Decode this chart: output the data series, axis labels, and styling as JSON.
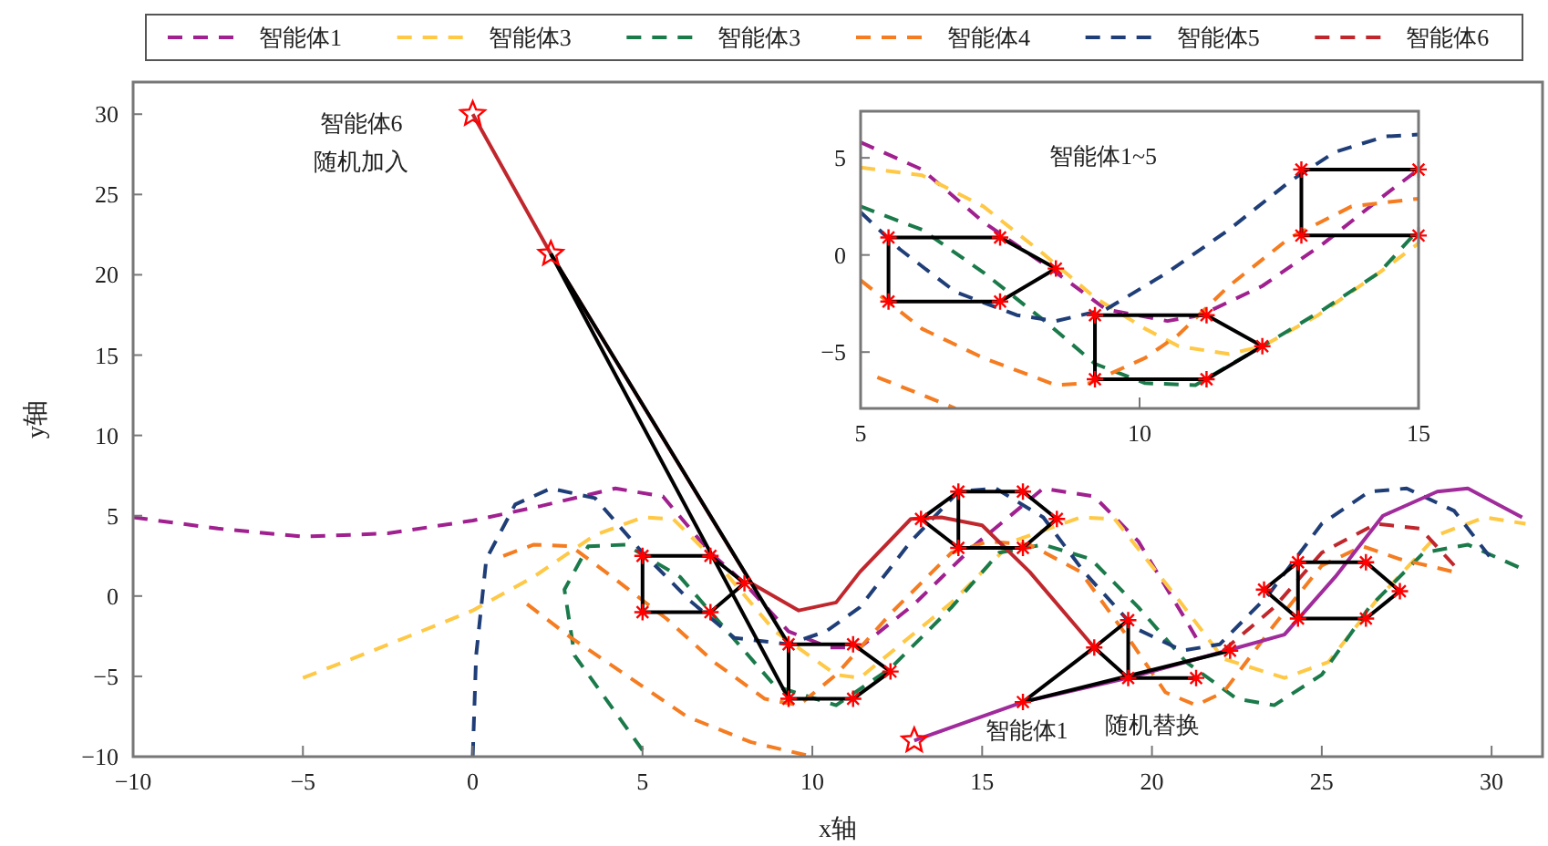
{
  "chart_data": [
    {
      "type": "line",
      "xlabel": "x轴",
      "ylabel": "y轴",
      "legend": "top",
      "grid": false,
      "xlim": [
        -10,
        31.5
      ],
      "ylim": [
        -10,
        32
      ],
      "xticks": [
        -10,
        -5,
        0,
        5,
        10,
        15,
        20,
        25,
        30
      ],
      "yticks": [
        -10,
        -5,
        0,
        5,
        10,
        15,
        20,
        25,
        30
      ],
      "annotations": [
        "智能体6",
        "随机加入",
        "智能体1",
        "随机替换"
      ],
      "series": [
        {
          "name": "智能体1",
          "color": "#a0208f",
          "line_style": "dashed",
          "x": [
            -10,
            -7.5,
            -5,
            -2.5,
            0,
            2,
            4.2,
            5.6,
            7,
            8,
            9.3,
            10.5,
            11.4,
            13,
            14.8,
            16.8,
            18.3,
            19.6,
            21,
            21.3
          ],
          "values": [
            4.9,
            4.2,
            3.7,
            3.9,
            4.7,
            5.6,
            6.7,
            6.2,
            2.7,
            0.8,
            -2.2,
            -3.2,
            -3.2,
            -0.5,
            3.2,
            6.7,
            6.2,
            3.4,
            -1.5,
            -2.6
          ]
        },
        {
          "name": "智能体3",
          "color": "#ffc845",
          "line_style": "dashed",
          "x": [
            -5,
            -2.7,
            0,
            1.8,
            3.6,
            5,
            5.9,
            7.1,
            8.9,
            10.7,
            11.4,
            14.1,
            15.9,
            17.9,
            18.9,
            20.7,
            22.1,
            23.9,
            25.2,
            26.6,
            28.4,
            29.8,
            31
          ],
          "values": [
            -5.1,
            -3.2,
            -0.9,
            1.2,
            3.8,
            4.9,
            4.8,
            2.3,
            -2.2,
            -4.9,
            -5.1,
            -0.4,
            3.4,
            4.9,
            4.8,
            0,
            -3.9,
            -5.1,
            -4.1,
            -0.3,
            3.8,
            4.9,
            4.5
          ]
        },
        {
          "name": "智能体3",
          "color": "#1a7a4a",
          "line_style": "dashed",
          "x": [
            5,
            3,
            2.7,
            3.4,
            4.5,
            6.1,
            7.5,
            8.9,
            10.7,
            12.3,
            14.1,
            15.5,
            16.8,
            18.2,
            19.6,
            21,
            22.5,
            23.6,
            25,
            26.4,
            28,
            29.3,
            30.9
          ],
          "values": [
            -9.6,
            -3.7,
            0.4,
            3.1,
            3.2,
            1.2,
            -2.2,
            -5.6,
            -6.8,
            -4.5,
            -0.7,
            2.7,
            3.2,
            2.3,
            -0.7,
            -4.1,
            -6.4,
            -6.8,
            -4.9,
            -0.7,
            2.7,
            3.2,
            1.7
          ]
        },
        {
          "name": "智能体4",
          "color": "#f57c20",
          "line_style": "dashed",
          "x": [
            0.9,
            1.8,
            2.9,
            4.1,
            5.7,
            7.1,
            8.6,
            9.6,
            10.7,
            12.3,
            14.1,
            15.2,
            16.4,
            17.9,
            19.3,
            20.4,
            21.3,
            22.1,
            23.6,
            25,
            26.2,
            27.3,
            28.9
          ],
          "values": [
            2.5,
            3.2,
            3.1,
            1.2,
            -1.4,
            -4.1,
            -6.4,
            -6.8,
            -4.9,
            -1.1,
            2.7,
            3.4,
            3.2,
            1.5,
            -2.6,
            -6,
            -6.8,
            -6,
            -1.8,
            1.9,
            3.1,
            2.3,
            1.5
          ]
        },
        {
          "name": "智能体5",
          "color": "#1f3e78",
          "line_style": "dashed",
          "x": [
            0,
            0.1,
            0.4,
            1.25,
            2.3,
            3.6,
            5,
            6.4,
            7.7,
            9.3,
            10.4,
            11.4,
            12.9,
            14.3,
            15.4,
            16.8,
            18,
            19.5,
            20.9,
            22,
            23.4,
            25,
            26.4,
            27.5,
            28.9,
            30
          ],
          "values": [
            -10,
            -3.7,
            2.3,
            5.7,
            6.7,
            6.1,
            2.7,
            -0.3,
            -2.6,
            -3,
            -2.2,
            -0.7,
            3.4,
            6.5,
            6.7,
            4.9,
            1.5,
            -2,
            -3.4,
            -3,
            0,
            4.5,
            6.5,
            6.7,
            5.3,
            2.3
          ]
        },
        {
          "name": "智能体6",
          "color": "#c0272d",
          "line_style": "dashed",
          "x": [
            22.1,
            23.6,
            25,
            26.6,
            27.9,
            28.9
          ],
          "values": [
            -3.4,
            -0.7,
            2.7,
            4.5,
            4.2,
            1.9
          ]
        },
        {
          "color": "#f57c20",
          "line_style": "dashed",
          "x": [
            1.6,
            2.9,
            4.5,
            6.3,
            8.2,
            10
          ],
          "values": [
            -0.5,
            -2.6,
            -4.9,
            -7.5,
            -9.1,
            -10
          ]
        },
        {
          "color": "#a02b9b",
          "line_style": "solid",
          "x": [
            13,
            16.2,
            19.3,
            22.2,
            23.9,
            25.4,
            26.8,
            28.4,
            29.3,
            30.9
          ],
          "values": [
            -9,
            -6.6,
            -5.1,
            -3.4,
            -2.4,
            1.2,
            5,
            6.5,
            6.7,
            4.9
          ]
        },
        {
          "color": "#c0272d",
          "line_style": "solid",
          "x": [
            0,
            2.3,
            8.2,
            9.6,
            10.7,
            11.4,
            12.9,
            13.8,
            15,
            16.4,
            18.3
          ],
          "values": [
            30,
            21.3,
            0.8,
            -0.9,
            -0.4,
            1.5,
            4.8,
            4.9,
            4.4,
            1.5,
            -3.2
          ]
        },
        {
          "color": "#000000",
          "x": [
            5,
            7,
            8
          ],
          "values": [
            2.5,
            2.5,
            0.8
          ]
        },
        {
          "color": "#000000",
          "x": [
            5,
            7,
            8
          ],
          "values": [
            -1,
            -1,
            0.8
          ]
        },
        {
          "color": "#000000",
          "x": [
            5,
            5
          ],
          "values": [
            -1,
            2.5
          ]
        },
        {
          "color": "#000000",
          "x": [
            2.3,
            9.3
          ],
          "values": [
            21.3,
            -6.4
          ]
        },
        {
          "color": "#000000",
          "x": [
            2.3,
            9.3
          ],
          "values": [
            21.3,
            -3
          ]
        },
        {
          "color": "#000000",
          "x": [
            9.3,
            11.2,
            12.3
          ],
          "values": [
            -3,
            -3,
            -4.7
          ]
        },
        {
          "color": "#000000",
          "x": [
            9.3,
            11.2,
            12.3
          ],
          "values": [
            -6.4,
            -6.4,
            -4.7
          ]
        },
        {
          "color": "#000000",
          "x": [
            9.3,
            9.3
          ],
          "values": [
            -6.4,
            -3
          ]
        },
        {
          "color": "#000000",
          "x": [
            13.2,
            14.3,
            16.2,
            17.2
          ],
          "values": [
            4.8,
            6.5,
            6.5,
            4.8
          ]
        },
        {
          "color": "#000000",
          "x": [
            13.2,
            14.3,
            16.2,
            17.2
          ],
          "values": [
            4.8,
            3,
            3,
            4.8
          ]
        },
        {
          "color": "#000000",
          "x": [
            14.3,
            14.3
          ],
          "values": [
            3,
            6.5
          ]
        },
        {
          "color": "#000000",
          "x": [
            16.2,
            18.3,
            19.3
          ],
          "values": [
            -6.6,
            -3.2,
            -1.5
          ]
        },
        {
          "color": "#000000",
          "x": [
            18.3,
            19.3,
            21.3
          ],
          "values": [
            -3.2,
            -5.1,
            -5.1
          ]
        },
        {
          "color": "#000000",
          "x": [
            19.3,
            19.3
          ],
          "values": [
            -5.1,
            -1.5
          ]
        },
        {
          "color": "#000000",
          "x": [
            16.2,
            22.3
          ],
          "values": [
            -6.6,
            -3.4
          ]
        },
        {
          "color": "#000000",
          "x": [
            23.3,
            24.3,
            26.3,
            27.3
          ],
          "values": [
            0.4,
            2.1,
            2.1,
            0.3
          ]
        },
        {
          "color": "#000000",
          "x": [
            23.3,
            24.3,
            26.3,
            27.3
          ],
          "values": [
            0.4,
            -1.4,
            -1.4,
            0.3
          ]
        },
        {
          "color": "#000000",
          "x": [
            24.3,
            24.3
          ],
          "values": [
            -1.4,
            2.1
          ]
        },
        {
          "type": "scatter",
          "marker": "cross",
          "color": "#ff0000",
          "x": [
            5,
            7,
            8,
            7,
            5,
            9.3,
            11.2,
            12.3,
            11.2,
            9.3,
            13.2,
            14.3,
            16.2,
            17.2,
            16.2,
            14.3,
            16.2,
            18.3,
            19.3,
            19.3,
            21.3,
            22.3,
            23.3,
            24.3,
            26.3,
            27.3,
            26.3,
            24.3
          ],
          "values": [
            2.5,
            2.5,
            0.8,
            -1,
            -1,
            -3,
            -3,
            -4.7,
            -6.4,
            -6.4,
            4.8,
            6.5,
            6.5,
            4.8,
            3,
            3,
            -6.6,
            -3.2,
            -1.5,
            -5.1,
            -5.1,
            -3.4,
            0.4,
            2.1,
            2.1,
            0.3,
            -1.4,
            -1.4
          ]
        },
        {
          "type": "scatter",
          "marker": "star",
          "color": "#ff0000",
          "x": [
            0,
            2.3,
            13
          ],
          "values": [
            30,
            21.3,
            -9
          ]
        }
      ]
    },
    {
      "type": "line",
      "grid": false,
      "xlim": [
        5,
        15
      ],
      "ylim": [
        -7.9,
        7.4
      ],
      "xticks": [
        5,
        10,
        15
      ],
      "yticks": [
        -5,
        0,
        5
      ],
      "annotations": [
        "智能体1~5"
      ],
      "series": [
        {
          "color": "#a0208f",
          "line_style": "dashed",
          "x": [
            5,
            6.1,
            7.2,
            8.5,
            9.4,
            10.5,
            11.1,
            12.2,
            13.3,
            14.4,
            15
          ],
          "values": [
            5.8,
            4.4,
            1.7,
            -0.9,
            -2.8,
            -3.4,
            -3.1,
            -1.6,
            0.6,
            3.1,
            4.4
          ]
        },
        {
          "color": "#ffc845",
          "line_style": "dashed",
          "x": [
            5,
            6.1,
            7.2,
            8.3,
            9.2,
            10.1,
            10.7,
            11.6,
            12.2,
            13.2,
            14.3,
            15
          ],
          "values": [
            4.5,
            4.1,
            2.5,
            0,
            -2.2,
            -3.8,
            -4.7,
            -5.1,
            -4.7,
            -3.1,
            -0.9,
            0.6
          ]
        },
        {
          "color": "#1a7a4a",
          "line_style": "dashed",
          "x": [
            5,
            6.1,
            7.2,
            8.3,
            9.2,
            10.1,
            11,
            12.2,
            13.3,
            14.3,
            15
          ],
          "values": [
            2.5,
            1.3,
            -0.9,
            -3.4,
            -5.6,
            -6.6,
            -6.7,
            -4.7,
            -2.8,
            -0.9,
            1.3
          ]
        },
        {
          "color": "#f57c20",
          "line_style": "dashed",
          "x": [
            5,
            6.1,
            7.2,
            8.5,
            9.1,
            10.1,
            10.7,
            11.6,
            12.7,
            13.8,
            15
          ],
          "values": [
            -1.3,
            -3.8,
            -5.3,
            -6.7,
            -6.6,
            -5.3,
            -4.1,
            -1.6,
            0.9,
            2.5,
            2.9
          ]
        },
        {
          "color": "#f57c20",
          "line_style": "dashed",
          "x": [
            5.3,
            6.1,
            6.7
          ],
          "values": [
            -6.3,
            -7.2,
            -7.9
          ]
        },
        {
          "color": "#1f3e78",
          "line_style": "dashed",
          "x": [
            5,
            5.7,
            6.7,
            7.8,
            8.5,
            9.4,
            10.5,
            11.6,
            12.7,
            13.5,
            14.4,
            15
          ],
          "values": [
            2.2,
            0.3,
            -1.9,
            -3.1,
            -3.4,
            -2.8,
            -0.9,
            1.3,
            3.8,
            5.3,
            6.1,
            6.2
          ]
        },
        {
          "color": "#000000",
          "x": [
            5.5,
            7.5,
            8.5
          ],
          "values": [
            0.9,
            0.9,
            -0.7
          ]
        },
        {
          "color": "#000000",
          "x": [
            5.5,
            7.5,
            8.5
          ],
          "values": [
            -2.4,
            -2.4,
            -0.7
          ]
        },
        {
          "color": "#000000",
          "x": [
            5.5,
            5.5
          ],
          "values": [
            -2.4,
            0.9
          ]
        },
        {
          "color": "#000000",
          "x": [
            9.2,
            11.2,
            12.2
          ],
          "values": [
            -3.1,
            -3.1,
            -4.7
          ]
        },
        {
          "color": "#000000",
          "x": [
            9.2,
            11.2,
            12.2
          ],
          "values": [
            -6.4,
            -6.4,
            -4.7
          ]
        },
        {
          "color": "#000000",
          "x": [
            9.2,
            9.2
          ],
          "values": [
            -6.4,
            -3.1
          ]
        },
        {
          "color": "#000000",
          "x": [
            12.9,
            15
          ],
          "values": [
            4.4,
            4.4
          ]
        },
        {
          "color": "#000000",
          "x": [
            12.9,
            15
          ],
          "values": [
            1,
            1
          ]
        },
        {
          "color": "#000000",
          "x": [
            12.9,
            12.9
          ],
          "values": [
            1,
            4.4
          ]
        },
        {
          "type": "scatter",
          "marker": "cross",
          "color": "#ff0000",
          "x": [
            5.5,
            7.5,
            8.5,
            7.5,
            5.5,
            9.2,
            11.2,
            12.2,
            11.2,
            9.2,
            12.9,
            15,
            15,
            12.9
          ],
          "values": [
            0.9,
            0.9,
            -0.7,
            -2.4,
            -2.4,
            -3.1,
            -3.1,
            -4.7,
            -6.4,
            -6.4,
            4.4,
            4.4,
            1,
            1
          ]
        }
      ]
    }
  ]
}
